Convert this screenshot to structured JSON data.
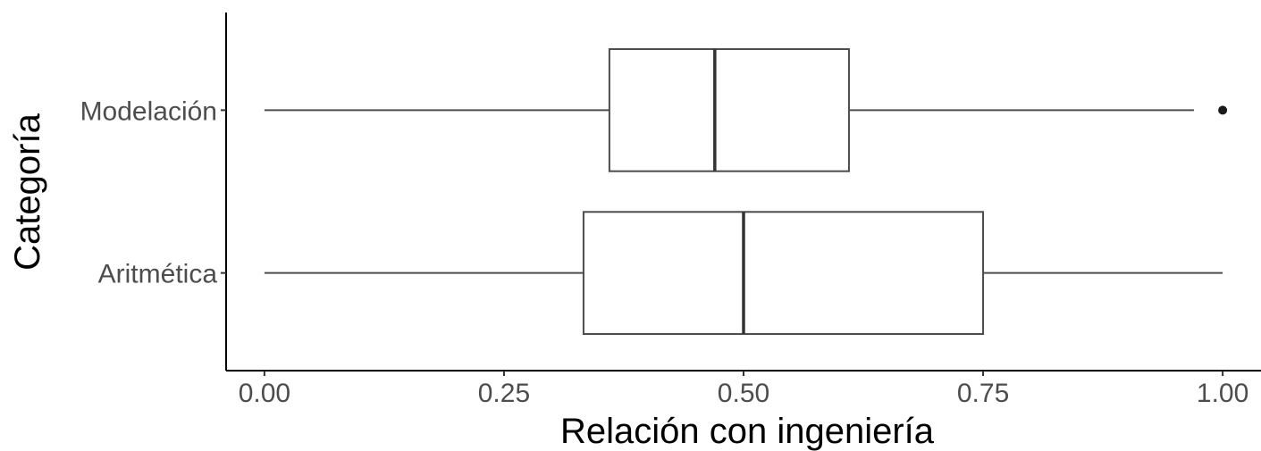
{
  "chart_data": {
    "type": "boxplot",
    "orientation": "horizontal",
    "xlabel": "Relación con ingeniería",
    "ylabel": "Categoría",
    "xlim": [
      -0.04,
      1.04
    ],
    "x_ticks": [
      0,
      0.25,
      0.5,
      0.75,
      1
    ],
    "x_tick_labels": [
      "0.00",
      "0.25",
      "0.50",
      "0.75",
      "1.00"
    ],
    "grid": false,
    "categories": [
      "Modelación",
      "Aritmética"
    ],
    "boxes": [
      {
        "category": "Modelación",
        "whisker_low": 0.0,
        "q1": 0.36,
        "median": 0.47,
        "q3": 0.61,
        "whisker_high": 0.97,
        "outliers": [
          1.0
        ]
      },
      {
        "category": "Aritmética",
        "whisker_low": 0.0,
        "q1": 0.333,
        "median": 0.5,
        "q3": 0.75,
        "whisker_high": 1.0,
        "outliers": []
      }
    ],
    "colors": {
      "box_line": "#4d4d4d",
      "median_line": "#333333",
      "outlier": "#1a1a1a",
      "axis_line": "#000000",
      "tick_text": "#4d4d4d",
      "title_text": "#000000"
    }
  }
}
